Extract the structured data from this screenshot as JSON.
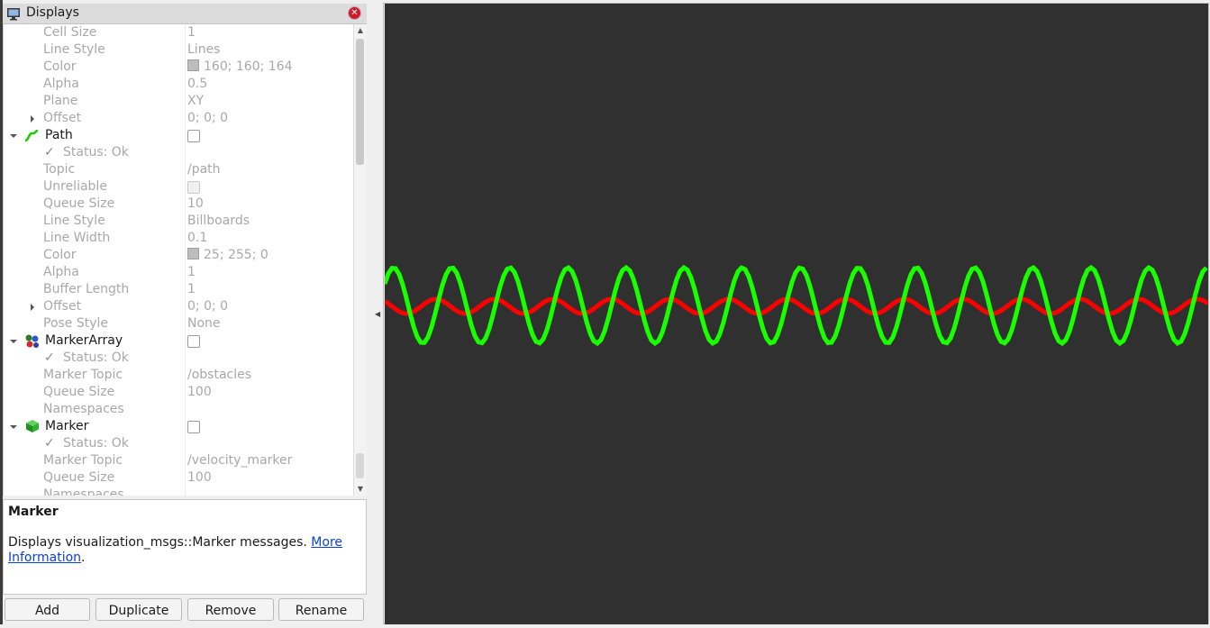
{
  "panel": {
    "title": "Displays"
  },
  "tree": {
    "rows": [
      {
        "label": "Cell Size",
        "value": "1"
      },
      {
        "label": "Line Style",
        "value": "Lines"
      },
      {
        "label": "Color",
        "value": "160; 160; 164"
      },
      {
        "label": "Alpha",
        "value": "0.5"
      },
      {
        "label": "Plane",
        "value": "XY"
      },
      {
        "label": "Offset",
        "value": "0; 0; 0"
      },
      {
        "label": "Path",
        "value": ""
      },
      {
        "label": "Status: Ok",
        "value": ""
      },
      {
        "label": "Topic",
        "value": "/path"
      },
      {
        "label": "Unreliable",
        "value": ""
      },
      {
        "label": "Queue Size",
        "value": "10"
      },
      {
        "label": "Line Style",
        "value": "Billboards"
      },
      {
        "label": "Line Width",
        "value": "0.1"
      },
      {
        "label": "Color",
        "value": "25; 255; 0"
      },
      {
        "label": "Alpha",
        "value": "1"
      },
      {
        "label": "Buffer Length",
        "value": "1"
      },
      {
        "label": "Offset",
        "value": "0; 0; 0"
      },
      {
        "label": "Pose Style",
        "value": "None"
      },
      {
        "label": "MarkerArray",
        "value": ""
      },
      {
        "label": "Status: Ok",
        "value": ""
      },
      {
        "label": "Marker Topic",
        "value": "/obstacles"
      },
      {
        "label": "Queue Size",
        "value": "100"
      },
      {
        "label": "Namespaces",
        "value": ""
      },
      {
        "label": "Marker",
        "value": ""
      },
      {
        "label": "Status: Ok",
        "value": ""
      },
      {
        "label": "Marker Topic",
        "value": "/velocity_marker"
      },
      {
        "label": "Queue Size",
        "value": "100"
      },
      {
        "label": "Namespaces",
        "value": ""
      }
    ]
  },
  "description": {
    "title": "Marker",
    "text": "Displays visualization_msgs::Marker messages.",
    "link_part1": "More",
    "link_part2": "Information",
    "suffix": "."
  },
  "buttons": {
    "add": "Add",
    "duplicate": "Duplicate",
    "remove": "Remove",
    "rename": "Rename"
  },
  "viewport": {
    "background": "#303030",
    "path_color": "#19ff00",
    "marker_color": "#ff0000"
  }
}
